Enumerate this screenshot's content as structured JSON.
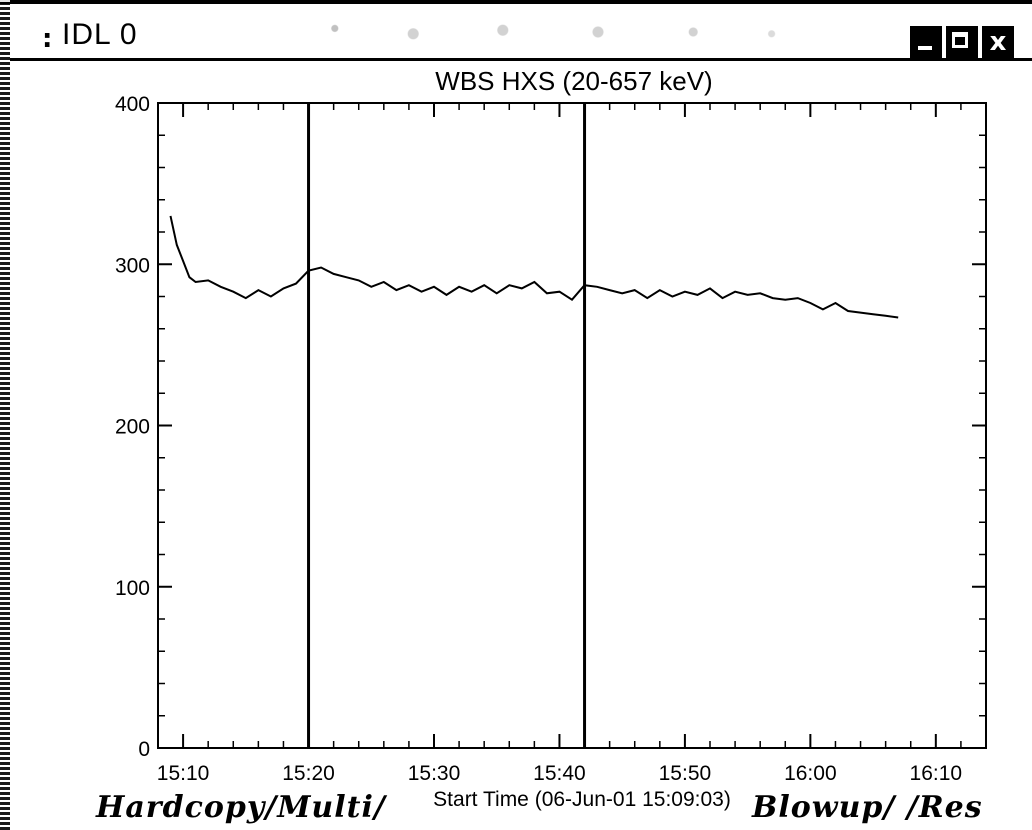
{
  "window": {
    "title": "IDL 0",
    "grip_symbol": ":",
    "close_symbol": "x"
  },
  "chart_data": {
    "type": "line",
    "title": "WBS HXS (20-657 keV)",
    "xlabel": "Start Time (06-Jun-01 15:09:03)",
    "ylabel": "",
    "xlim": [
      "15:08",
      "16:14"
    ],
    "ylim": [
      0,
      400
    ],
    "x_ticks": [
      "15:10",
      "15:20",
      "15:30",
      "15:40",
      "15:50",
      "16:00",
      "16:10"
    ],
    "y_ticks": [
      "0",
      "100",
      "200",
      "300",
      "400"
    ],
    "vertical_markers": [
      "15:20",
      "15:42"
    ],
    "grid": false,
    "series": [
      {
        "x": [
          "15:09",
          "15:09",
          "15:10",
          "15:10",
          "15:11",
          "15:12",
          "15:13",
          "15:14",
          "15:15",
          "15:16",
          "15:17",
          "15:18",
          "15:19",
          "15:20",
          "15:21",
          "15:22",
          "15:23",
          "15:24",
          "15:25",
          "15:26",
          "15:27",
          "15:28",
          "15:29",
          "15:30",
          "15:31",
          "15:32",
          "15:33",
          "15:34",
          "15:35",
          "15:36",
          "15:37",
          "15:38",
          "15:39",
          "15:40",
          "15:41",
          "15:42",
          "15:43",
          "15:44",
          "15:45",
          "15:46",
          "15:47",
          "15:48",
          "15:49",
          "15:50",
          "15:51",
          "15:52",
          "15:53",
          "15:54",
          "15:55",
          "15:56",
          "15:57",
          "15:58",
          "15:59",
          "16:00",
          "16:01",
          "16:02",
          "16:03",
          "16:04",
          "16:05",
          "16:06",
          "16:07"
        ],
        "values": [
          330,
          312,
          302,
          292,
          289,
          290,
          286,
          283,
          279,
          284,
          280,
          285,
          288,
          296,
          298,
          294,
          292,
          290,
          286,
          289,
          284,
          287,
          283,
          286,
          281,
          286,
          283,
          287,
          282,
          287,
          285,
          289,
          282,
          283,
          278,
          287,
          286,
          284,
          282,
          284,
          279,
          284,
          280,
          283,
          281,
          285,
          279,
          283,
          281,
          282,
          279,
          278,
          279,
          276,
          272,
          276,
          271,
          270,
          269,
          268,
          267
        ]
      }
    ]
  },
  "bottom_menu": {
    "left_label": "Hardcopy/Multi/",
    "right_label": "Blowup/  /Res"
  }
}
